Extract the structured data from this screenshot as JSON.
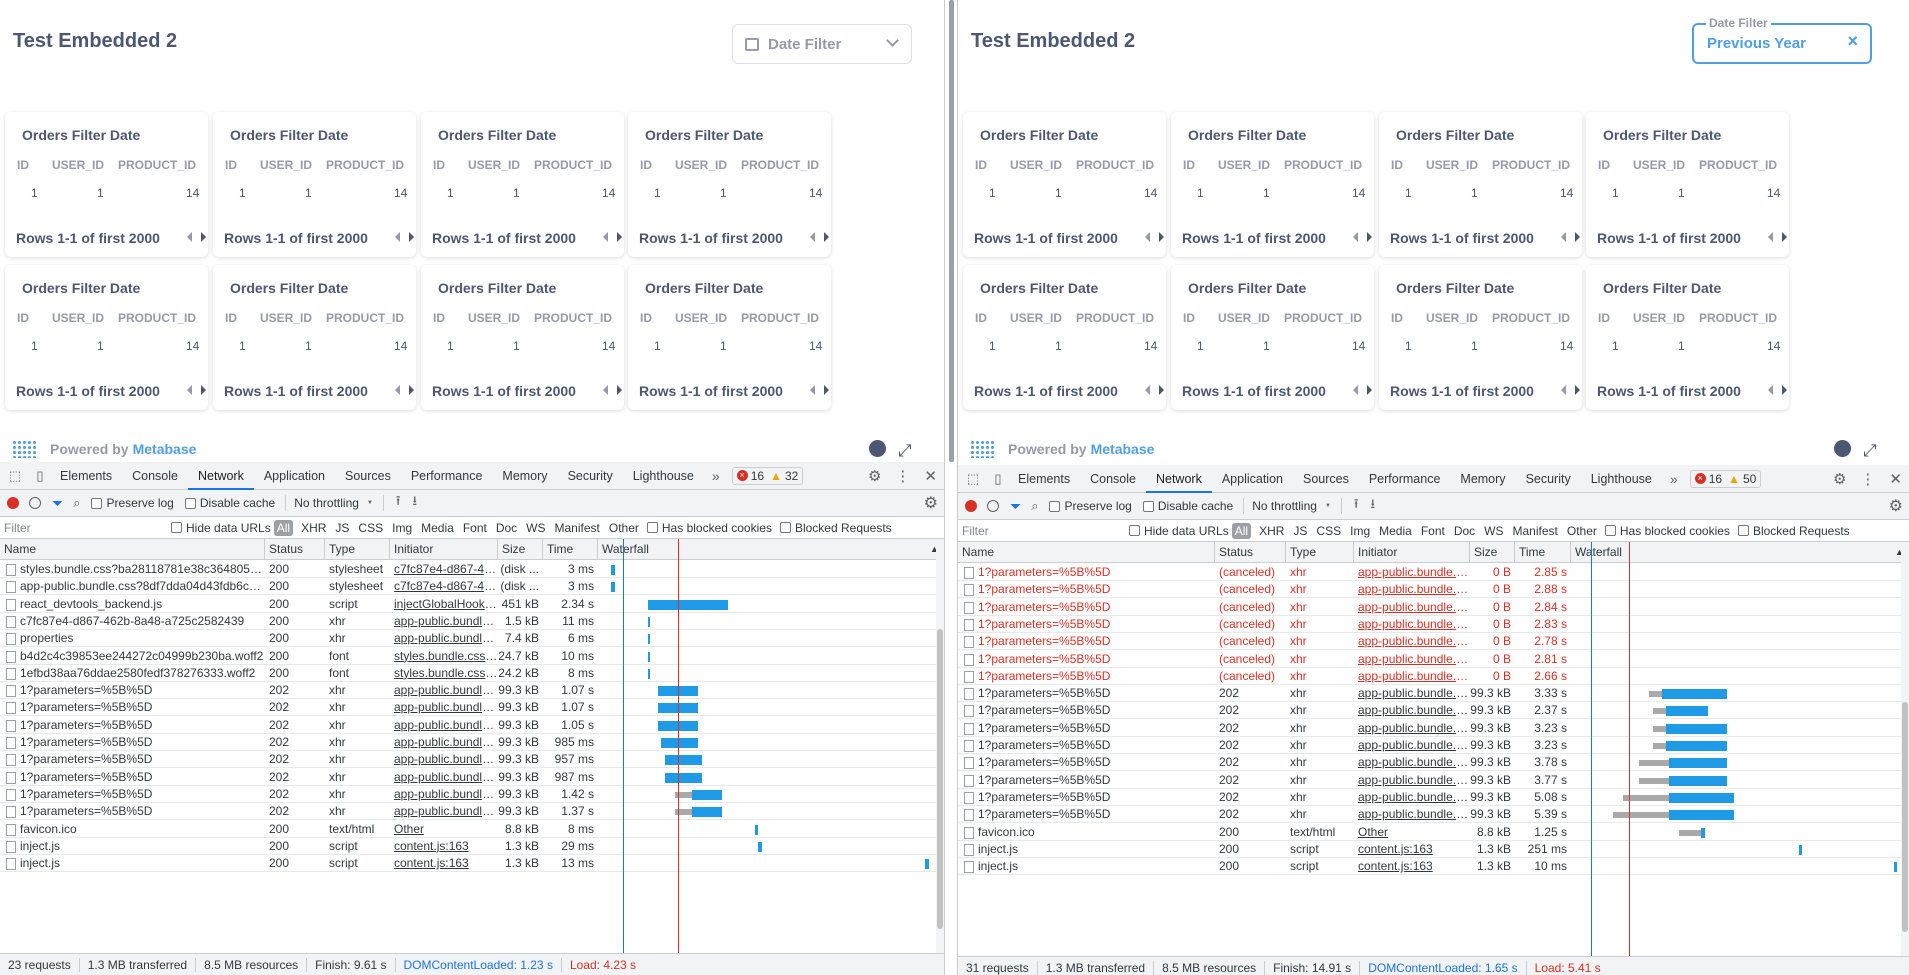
{
  "colors": {
    "accent": "#509ee3",
    "devtools_blue": "#1a73e8",
    "bar_blue": "#1e9ae6",
    "error_red": "#d93025",
    "waiting_grey": "#a9a9a9"
  },
  "dashboard": {
    "title": "Test Embedded 2",
    "card": {
      "title": "Orders Filter Date",
      "columns": [
        "ID",
        "USER_ID",
        "PRODUCT_ID"
      ],
      "row": [
        "1",
        "1",
        "14"
      ],
      "footer": "Rows 1-1 of first 2000"
    },
    "powered_by": "Powered by",
    "brand": "Metabase"
  },
  "left_filter": {
    "placeholder": "Date Filter",
    "icon": "calendar-icon",
    "chevron": "chevron-down-icon"
  },
  "right_filter": {
    "label": "Date Filter",
    "value": "Previous Year",
    "clear": "×"
  },
  "devtools": {
    "tabs": [
      "Elements",
      "Console",
      "Network",
      "Application",
      "Sources",
      "Performance",
      "Memory",
      "Security",
      "Lighthouse"
    ],
    "active_tab": "Network",
    "more": "»",
    "toolbar": {
      "preserve_log": "Preserve log",
      "disable_cache": "Disable cache",
      "throttling": "No throttling"
    },
    "filter_bar": {
      "placeholder": "Filter",
      "hide_data_urls": "Hide data URLs",
      "all": "All",
      "types": [
        "XHR",
        "JS",
        "CSS",
        "Img",
        "Media",
        "Font",
        "Doc",
        "WS",
        "Manifest",
        "Other"
      ],
      "has_blocked_cookies": "Has blocked cookies",
      "blocked_requests": "Blocked Requests"
    },
    "columns": [
      "Name",
      "Status",
      "Type",
      "Initiator",
      "Size",
      "Time",
      "Waterfall"
    ]
  },
  "left_network": {
    "errors": "16",
    "warnings": "32",
    "rows": [
      {
        "name": "styles.bundle.css?ba28118781e38c364805dc93bd5...",
        "status": "200",
        "type": "stylesheet",
        "initiator": "c7fc87e4-d867-462...",
        "size": "(disk ...",
        "time": "3 ms",
        "wf": [
          0.04,
          0.01,
          0.0
        ],
        "red": false
      },
      {
        "name": "app-public.bundle.css?8df7dda04d43fdb6c9f64849...",
        "status": "200",
        "type": "stylesheet",
        "initiator": "c7fc87e4-d867-462...",
        "size": "(disk ...",
        "time": "3 ms",
        "wf": [
          0.04,
          0.01,
          0.0
        ],
        "red": false
      },
      {
        "name": "react_devtools_backend.js",
        "status": "200",
        "type": "script",
        "initiator": "injectGlobalHook.js:...",
        "size": "451 kB",
        "time": "2.34 s",
        "wf": [
          0.15,
          0.24,
          0.0
        ],
        "red": false
      },
      {
        "name": "c7fc87e4-d867-462b-8a48-a725c2582439",
        "status": "200",
        "type": "xhr",
        "initiator": "app-public.bundle.js...",
        "size": "1.5 kB",
        "time": "11 ms",
        "wf": [
          0.15,
          0.005,
          0.0
        ],
        "red": false
      },
      {
        "name": "properties",
        "status": "200",
        "type": "xhr",
        "initiator": "app-public.bundle.js...",
        "size": "7.4 kB",
        "time": "6 ms",
        "wf": [
          0.15,
          0.005,
          0.0
        ],
        "red": false
      },
      {
        "name": "b4d2c4c39853ee244272c04999b230ba.woff2",
        "status": "200",
        "type": "font",
        "initiator": "styles.bundle.css?b...",
        "size": "24.7 kB",
        "time": "10 ms",
        "wf": [
          0.15,
          0.005,
          0.0
        ],
        "red": false
      },
      {
        "name": "1efbd38aa76ddae2580fedf378276333.woff2",
        "status": "200",
        "type": "font",
        "initiator": "styles.bundle.css?b...",
        "size": "24.2 kB",
        "time": "8 ms",
        "wf": [
          0.15,
          0.005,
          0.0
        ],
        "red": false
      },
      {
        "name": "1?parameters=%5B%5D",
        "status": "202",
        "type": "xhr",
        "initiator": "app-public.bundle.js...",
        "size": "99.3 kB",
        "time": "1.07 s",
        "wf": [
          0.18,
          0.12,
          0.0
        ],
        "red": false
      },
      {
        "name": "1?parameters=%5B%5D",
        "status": "202",
        "type": "xhr",
        "initiator": "app-public.bundle.js...",
        "size": "99.3 kB",
        "time": "1.07 s",
        "wf": [
          0.18,
          0.12,
          0.0
        ],
        "red": false
      },
      {
        "name": "1?parameters=%5B%5D",
        "status": "202",
        "type": "xhr",
        "initiator": "app-public.bundle.js...",
        "size": "99.3 kB",
        "time": "1.05 s",
        "wf": [
          0.18,
          0.12,
          0.0
        ],
        "red": false
      },
      {
        "name": "1?parameters=%5B%5D",
        "status": "202",
        "type": "xhr",
        "initiator": "app-public.bundle.js...",
        "size": "99.3 kB",
        "time": "985 ms",
        "wf": [
          0.19,
          0.11,
          0.0
        ],
        "red": false
      },
      {
        "name": "1?parameters=%5B%5D",
        "status": "202",
        "type": "xhr",
        "initiator": "app-public.bundle.js...",
        "size": "99.3 kB",
        "time": "957 ms",
        "wf": [
          0.2,
          0.11,
          0.0
        ],
        "red": false
      },
      {
        "name": "1?parameters=%5B%5D",
        "status": "202",
        "type": "xhr",
        "initiator": "app-public.bundle.js...",
        "size": "99.3 kB",
        "time": "987 ms",
        "wf": [
          0.2,
          0.11,
          0.0
        ],
        "red": false
      },
      {
        "name": "1?parameters=%5B%5D",
        "status": "202",
        "type": "xhr",
        "initiator": "app-public.bundle.js...",
        "size": "99.3 kB",
        "time": "1.42 s",
        "wf": [
          0.28,
          0.09,
          0.05
        ],
        "red": false
      },
      {
        "name": "1?parameters=%5B%5D",
        "status": "202",
        "type": "xhr",
        "initiator": "app-public.bundle.js...",
        "size": "99.3 kB",
        "time": "1.37 s",
        "wf": [
          0.28,
          0.09,
          0.05
        ],
        "red": false
      },
      {
        "name": "favicon.ico",
        "status": "200",
        "type": "text/html",
        "initiator": "Other",
        "size": "8.8 kB",
        "time": "8 ms",
        "wf": [
          0.47,
          0.01,
          0.0
        ],
        "red": false
      },
      {
        "name": "inject.js",
        "status": "200",
        "type": "script",
        "initiator": "content.js:163",
        "size": "1.3 kB",
        "time": "29 ms",
        "wf": [
          0.48,
          0.01,
          0.0
        ],
        "red": false
      },
      {
        "name": "inject.js",
        "status": "200",
        "type": "script",
        "initiator": "content.js:163",
        "size": "1.3 kB",
        "time": "13 ms",
        "wf": [
          0.98,
          0.01,
          0.0
        ],
        "red": false
      }
    ],
    "summary": {
      "requests": "23 requests",
      "transferred": "1.3 MB transferred",
      "resources": "8.5 MB resources",
      "finish": "Finish: 9.61 s",
      "dcl": "DOMContentLoaded: 1.23 s",
      "load": "Load: 4.23 s"
    }
  },
  "right_network": {
    "errors": "16",
    "warnings": "50",
    "rows": [
      {
        "name": "1?parameters=%5B%5D",
        "status": "(canceled)",
        "type": "xhr",
        "initiator": "app-public.bundle.js?...",
        "size": "0 B",
        "time": "2.85 s",
        "wf": [
          0,
          0,
          0
        ],
        "red": true
      },
      {
        "name": "1?parameters=%5B%5D",
        "status": "(canceled)",
        "type": "xhr",
        "initiator": "app-public.bundle.js?...",
        "size": "0 B",
        "time": "2.88 s",
        "wf": [
          0,
          0,
          0
        ],
        "red": true
      },
      {
        "name": "1?parameters=%5B%5D",
        "status": "(canceled)",
        "type": "xhr",
        "initiator": "app-public.bundle.js?...",
        "size": "0 B",
        "time": "2.84 s",
        "wf": [
          0,
          0,
          0
        ],
        "red": true
      },
      {
        "name": "1?parameters=%5B%5D",
        "status": "(canceled)",
        "type": "xhr",
        "initiator": "app-public.bundle.js?...",
        "size": "0 B",
        "time": "2.83 s",
        "wf": [
          0,
          0,
          0
        ],
        "red": true
      },
      {
        "name": "1?parameters=%5B%5D",
        "status": "(canceled)",
        "type": "xhr",
        "initiator": "app-public.bundle.js?...",
        "size": "0 B",
        "time": "2.78 s",
        "wf": [
          0,
          0,
          0
        ],
        "red": true
      },
      {
        "name": "1?parameters=%5B%5D",
        "status": "(canceled)",
        "type": "xhr",
        "initiator": "app-public.bundle.js?...",
        "size": "0 B",
        "time": "2.81 s",
        "wf": [
          0,
          0,
          0
        ],
        "red": true
      },
      {
        "name": "1?parameters=%5B%5D",
        "status": "(canceled)",
        "type": "xhr",
        "initiator": "app-public.bundle.js?...",
        "size": "0 B",
        "time": "2.66 s",
        "wf": [
          0,
          0,
          0
        ],
        "red": true
      },
      {
        "name": "1?parameters=%5B%5D",
        "status": "202",
        "type": "xhr",
        "initiator": "app-public.bundle.js?...",
        "size": "99.3 kB",
        "time": "3.33 s",
        "wf": [
          0.28,
          0.2,
          0.04
        ],
        "red": false
      },
      {
        "name": "1?parameters=%5B%5D",
        "status": "202",
        "type": "xhr",
        "initiator": "app-public.bundle.js?...",
        "size": "99.3 kB",
        "time": "2.37 s",
        "wf": [
          0.29,
          0.13,
          0.04
        ],
        "red": false
      },
      {
        "name": "1?parameters=%5B%5D",
        "status": "202",
        "type": "xhr",
        "initiator": "app-public.bundle.js?...",
        "size": "99.3 kB",
        "time": "3.23 s",
        "wf": [
          0.29,
          0.19,
          0.04
        ],
        "red": false
      },
      {
        "name": "1?parameters=%5B%5D",
        "status": "202",
        "type": "xhr",
        "initiator": "app-public.bundle.js?...",
        "size": "99.3 kB",
        "time": "3.23 s",
        "wf": [
          0.29,
          0.19,
          0.04
        ],
        "red": false
      },
      {
        "name": "1?parameters=%5B%5D",
        "status": "202",
        "type": "xhr",
        "initiator": "app-public.bundle.js?...",
        "size": "99.3 kB",
        "time": "3.78 s",
        "wf": [
          0.3,
          0.18,
          0.09
        ],
        "red": false
      },
      {
        "name": "1?parameters=%5B%5D",
        "status": "202",
        "type": "xhr",
        "initiator": "app-public.bundle.js?...",
        "size": "99.3 kB",
        "time": "3.77 s",
        "wf": [
          0.3,
          0.18,
          0.09
        ],
        "red": false
      },
      {
        "name": "1?parameters=%5B%5D",
        "status": "202",
        "type": "xhr",
        "initiator": "app-public.bundle.js?...",
        "size": "99.3 kB",
        "time": "5.08 s",
        "wf": [
          0.3,
          0.2,
          0.14
        ],
        "red": false
      },
      {
        "name": "1?parameters=%5B%5D",
        "status": "202",
        "type": "xhr",
        "initiator": "app-public.bundle.js?...",
        "size": "99.3 kB",
        "time": "5.39 s",
        "wf": [
          0.3,
          0.2,
          0.17
        ],
        "red": false
      },
      {
        "name": "favicon.ico",
        "status": "200",
        "type": "text/html",
        "initiator": "Other",
        "size": "8.8 kB",
        "time": "1.25 s",
        "wf": [
          0.4,
          0.01,
          0.07
        ],
        "red": false
      },
      {
        "name": "inject.js",
        "status": "200",
        "type": "script",
        "initiator": "content.js:163",
        "size": "1.3 kB",
        "time": "251 ms",
        "wf": [
          0.7,
          0.01,
          0.0
        ],
        "red": false
      },
      {
        "name": "inject.js",
        "status": "200",
        "type": "script",
        "initiator": "content.js:163",
        "size": "1.3 kB",
        "time": "10 ms",
        "wf": [
          0.99,
          0.01,
          0.0
        ],
        "red": false
      }
    ],
    "summary": {
      "requests": "31 requests",
      "transferred": "1.3 MB transferred",
      "resources": "8.5 MB resources",
      "finish": "Finish: 14.91 s",
      "dcl": "DOMContentLoaded: 1.65 s",
      "load": "Load: 5.41 s"
    }
  }
}
